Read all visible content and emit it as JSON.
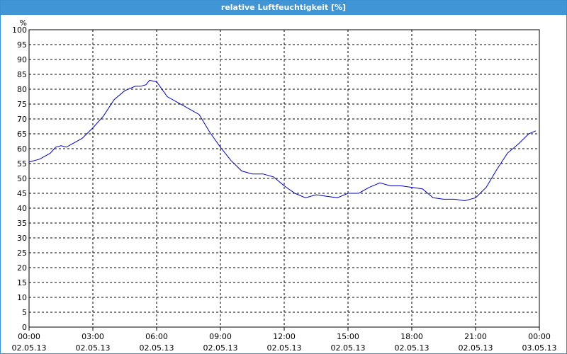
{
  "window": {
    "title": "relative Luftfeuchtigkeit [%]"
  },
  "colors": {
    "titlebar": "#3f95d6",
    "line": "#0000cc",
    "grid": "#000000"
  },
  "chart_data": {
    "type": "line",
    "title": "relative Luftfeuchtigkeit [%]",
    "ylabel": "%",
    "ylim": [
      0,
      100
    ],
    "yticks": [
      0,
      5,
      10,
      15,
      20,
      25,
      30,
      35,
      40,
      45,
      50,
      55,
      60,
      65,
      70,
      75,
      80,
      85,
      90,
      95,
      100
    ],
    "xlim": [
      "02.05.13 00:00",
      "03.05.13 00:00"
    ],
    "xticks": [
      {
        "time": "00:00",
        "date": "02.05.13"
      },
      {
        "time": "03:00",
        "date": "02.05.13"
      },
      {
        "time": "06:00",
        "date": "02.05.13"
      },
      {
        "time": "09:00",
        "date": "02.05.13"
      },
      {
        "time": "12:00",
        "date": "02.05.13"
      },
      {
        "time": "15:00",
        "date": "02.05.13"
      },
      {
        "time": "18:00",
        "date": "02.05.13"
      },
      {
        "time": "21:00",
        "date": "02.05.13"
      },
      {
        "time": "00:00",
        "date": "03.05.13"
      }
    ],
    "grid": true,
    "series": [
      {
        "x": [
          "00:00",
          "00:30",
          "01:00",
          "01:15",
          "01:30",
          "01:45",
          "02:00",
          "02:30",
          "03:00",
          "03:30",
          "04:00",
          "04:30",
          "05:00",
          "05:15",
          "05:30",
          "05:40",
          "06:00",
          "06:30",
          "07:00",
          "07:30",
          "08:00",
          "08:30",
          "09:00",
          "09:30",
          "10:00",
          "10:30",
          "11:00",
          "11:30",
          "12:00",
          "12:30",
          "13:00",
          "13:30",
          "14:00",
          "14:30",
          "15:00",
          "15:30",
          "16:00",
          "16:30",
          "17:00",
          "17:30",
          "18:00",
          "18:30",
          "19:00",
          "19:30",
          "20:00",
          "20:30",
          "21:00",
          "21:30",
          "22:00",
          "22:30",
          "23:00",
          "23:30",
          "23:50"
        ],
        "y": [
          55.5,
          56.5,
          58.5,
          60.5,
          61,
          60.5,
          61.5,
          63.5,
          67,
          71,
          76.5,
          79.5,
          81,
          81,
          81.5,
          83,
          82.5,
          77.5,
          75.5,
          73.5,
          71.5,
          65.5,
          60.5,
          56,
          52.5,
          51.5,
          51.5,
          50.5,
          47.5,
          45,
          43.5,
          44.5,
          44,
          43.5,
          45,
          45,
          47,
          48.5,
          47.5,
          47.5,
          47,
          46.5,
          43.5,
          43,
          43,
          42.5,
          43.5,
          47,
          53,
          58.5,
          61.5,
          65,
          66
        ]
      }
    ]
  }
}
